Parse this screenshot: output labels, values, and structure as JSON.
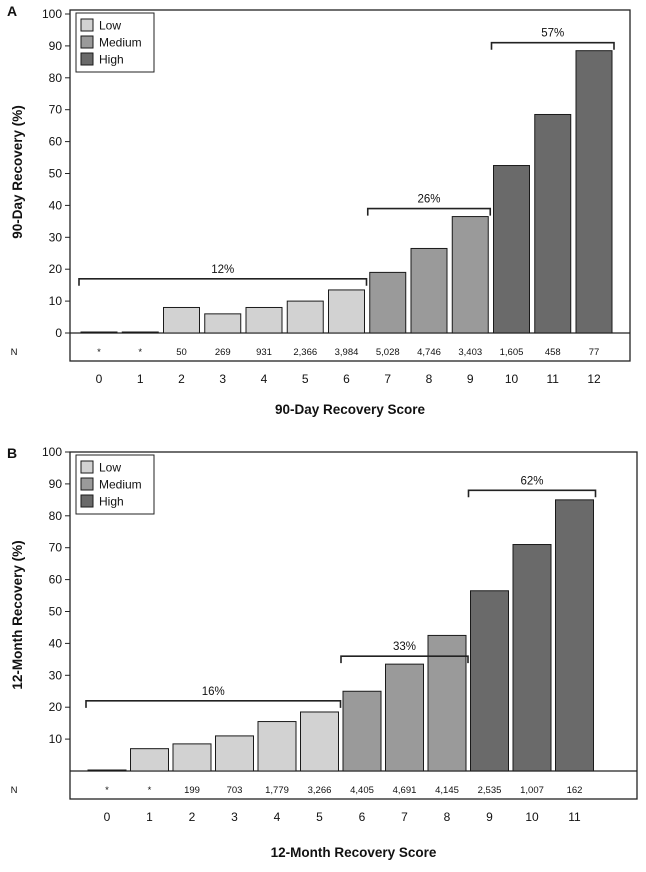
{
  "colors": {
    "low": "#d2d2d2",
    "medium": "#9a9a9a",
    "high": "#6a6a6a",
    "axis": "#222222",
    "bar_stroke": "#1a1a1a"
  },
  "chart_data": [
    {
      "type": "bar",
      "panel_label": "A",
      "xlabel": "90-Day Recovery Score",
      "ylabel": "90-Day Recovery (%)",
      "ylim": [
        0,
        100
      ],
      "yticks": [
        0,
        10,
        20,
        30,
        40,
        50,
        60,
        70,
        80,
        90,
        100
      ],
      "categories": [
        "0",
        "1",
        "2",
        "3",
        "4",
        "5",
        "6",
        "7",
        "8",
        "9",
        "10",
        "11",
        "12"
      ],
      "values": [
        0,
        0,
        8,
        6,
        8,
        10,
        13.5,
        19,
        26.5,
        36.5,
        52.5,
        68.5,
        88.5
      ],
      "groups": [
        "Low",
        "Low",
        "Low",
        "Low",
        "Low",
        "Low",
        "Low",
        "Medium",
        "Medium",
        "Medium",
        "High",
        "High",
        "High"
      ],
      "n_label": "N",
      "n_values": [
        "*",
        "*",
        "50",
        "269",
        "931",
        "2,366",
        "3,984",
        "5,028",
        "4,746",
        "3,403",
        "1,605",
        "458",
        "77"
      ],
      "legend": [
        "Low",
        "Medium",
        "High"
      ],
      "legend_position": "top-left",
      "brackets": [
        {
          "label": "12%",
          "from": 0,
          "to": 6,
          "level": 17
        },
        {
          "label": "26%",
          "from": 7,
          "to": 9,
          "level": 39
        },
        {
          "label": "57%",
          "from": 10,
          "to": 12,
          "level": 91
        }
      ]
    },
    {
      "type": "bar",
      "panel_label": "B",
      "xlabel": "12-Month Recovery Score",
      "ylabel": "12-Month Recovery (%)",
      "ylim": [
        0,
        100
      ],
      "yticks": [
        10,
        20,
        30,
        40,
        50,
        60,
        70,
        80,
        90,
        100
      ],
      "categories": [
        "0",
        "1",
        "2",
        "3",
        "4",
        "5",
        "6",
        "7",
        "8",
        "9",
        "10",
        "11"
      ],
      "values": [
        0,
        7,
        8.5,
        11,
        15.5,
        18.5,
        25,
        33.5,
        42.5,
        56.5,
        71,
        85
      ],
      "groups": [
        "Low",
        "Low",
        "Low",
        "Low",
        "Low",
        "Low",
        "Medium",
        "Medium",
        "Medium",
        "High",
        "High",
        "High"
      ],
      "n_label": "N",
      "n_values": [
        "*",
        "*",
        "199",
        "703",
        "1,779",
        "3,266",
        "4,405",
        "4,691",
        "4,145",
        "2,535",
        "1,007",
        "162"
      ],
      "legend": [
        "Low",
        "Medium",
        "High"
      ],
      "legend_position": "top-left",
      "brackets": [
        {
          "label": "16%",
          "from": 0,
          "to": 5,
          "level": 22
        },
        {
          "label": "33%",
          "from": 6,
          "to": 8,
          "level": 36
        },
        {
          "label": "62%",
          "from": 9,
          "to": 11,
          "level": 88
        }
      ]
    }
  ]
}
